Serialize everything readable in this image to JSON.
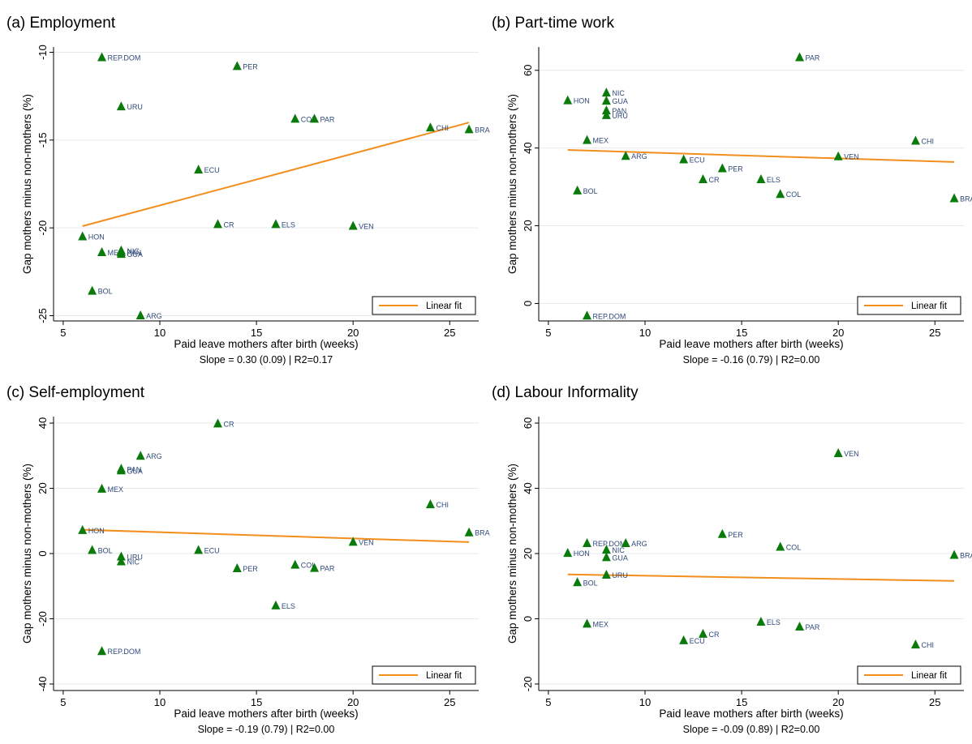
{
  "colors": {
    "marker": "#0a7a0a",
    "fit": "#f28e1c",
    "label": "#2f4a7a",
    "grid": "#e6eaee",
    "axis": "#000000"
  },
  "chart_data": [
    {
      "type": "scatter",
      "panel_title": "(a) Employment",
      "xlabel": "Paid leave mothers after birth (weeks)",
      "ylabel": "Gap mothers minus non-mothers (%)",
      "caption": "Slope = 0.30 (0.09) | R2=0.17",
      "xlim": [
        4.5,
        26.5
      ],
      "ylim": [
        -25.3,
        -9.7
      ],
      "xticks": [
        5,
        10,
        15,
        20,
        25
      ],
      "yticks": [
        -25,
        -20,
        -15,
        -10
      ],
      "grid": true,
      "legend": {
        "label": "Linear fit",
        "position": "bottom-right"
      },
      "fit": {
        "x": [
          6,
          26
        ],
        "y": [
          -19.9,
          -14.0
        ]
      },
      "points": [
        {
          "label": "REP.DOM",
          "x": 7,
          "y": -10.3
        },
        {
          "label": "PER",
          "x": 14,
          "y": -10.8
        },
        {
          "label": "URU",
          "x": 8,
          "y": -13.1
        },
        {
          "label": "COL",
          "x": 17,
          "y": -13.8
        },
        {
          "label": "PAR",
          "x": 18,
          "y": -13.8
        },
        {
          "label": "CHI",
          "x": 24,
          "y": -14.3
        },
        {
          "label": "BRA",
          "x": 26,
          "y": -14.4
        },
        {
          "label": "ECU",
          "x": 12,
          "y": -16.7
        },
        {
          "label": "CR",
          "x": 13,
          "y": -19.8
        },
        {
          "label": "ELS",
          "x": 16,
          "y": -19.8
        },
        {
          "label": "VEN",
          "x": 20,
          "y": -19.9
        },
        {
          "label": "HON",
          "x": 6,
          "y": -20.5
        },
        {
          "label": "MEX",
          "x": 7,
          "y": -21.4
        },
        {
          "label": "NIC",
          "x": 8,
          "y": -21.3
        },
        {
          "label": "PAN",
          "x": 8,
          "y": -21.4
        },
        {
          "label": "GUA",
          "x": 8,
          "y": -21.5
        },
        {
          "label": "BOL",
          "x": 6.5,
          "y": -23.6
        },
        {
          "label": "ARG",
          "x": 9,
          "y": -25.0
        }
      ]
    },
    {
      "type": "scatter",
      "panel_title": "(b) Part-time work",
      "xlabel": "Paid leave mothers after birth (weeks)",
      "ylabel": "Gap mothers minus non-mothers (%)",
      "caption": "Slope = -0.16 (0.79) | R2=0.00",
      "xlim": [
        4.5,
        26.5
      ],
      "ylim": [
        -4.5,
        66
      ],
      "xticks": [
        5,
        10,
        15,
        20,
        25
      ],
      "yticks": [
        0,
        20,
        40,
        60
      ],
      "grid": true,
      "legend": {
        "label": "Linear fit",
        "position": "bottom-right"
      },
      "fit": {
        "x": [
          6,
          26
        ],
        "y": [
          39.5,
          36.4
        ]
      },
      "points": [
        {
          "label": "PAR",
          "x": 18,
          "y": 63.3
        },
        {
          "label": "NIC",
          "x": 8,
          "y": 54.2
        },
        {
          "label": "HON",
          "x": 6,
          "y": 52.2
        },
        {
          "label": "GUA",
          "x": 8,
          "y": 52.1
        },
        {
          "label": "PAN",
          "x": 8,
          "y": 49.6
        },
        {
          "label": "URU",
          "x": 8,
          "y": 48.4
        },
        {
          "label": "MEX",
          "x": 7,
          "y": 42.0
        },
        {
          "label": "CHI",
          "x": 24,
          "y": 41.8
        },
        {
          "label": "ARG",
          "x": 9,
          "y": 37.9
        },
        {
          "label": "VEN",
          "x": 20,
          "y": 37.8
        },
        {
          "label": "ECU",
          "x": 12,
          "y": 37.0
        },
        {
          "label": "PER",
          "x": 14,
          "y": 34.7
        },
        {
          "label": "CR",
          "x": 13,
          "y": 31.9
        },
        {
          "label": "ELS",
          "x": 16,
          "y": 31.9
        },
        {
          "label": "BOL",
          "x": 6.5,
          "y": 29.0
        },
        {
          "label": "COL",
          "x": 17,
          "y": 28.1
        },
        {
          "label": "BRA",
          "x": 26,
          "y": 27.0
        },
        {
          "label": "REP.DOM",
          "x": 7,
          "y": -3.2
        }
      ]
    },
    {
      "type": "scatter",
      "panel_title": "(c) Self-employment",
      "xlabel": "Paid leave mothers after birth (weeks)",
      "ylabel": "Gap mothers minus non-mothers (%)",
      "caption": "Slope = -0.19 (0.79) | R2=0.00",
      "xlim": [
        4.5,
        26.5
      ],
      "ylim": [
        -42,
        42
      ],
      "xticks": [
        5,
        10,
        15,
        20,
        25
      ],
      "yticks": [
        -40,
        -20,
        0,
        20,
        40
      ],
      "grid": true,
      "legend": {
        "label": "Linear fit",
        "position": "bottom-right"
      },
      "fit": {
        "x": [
          6,
          26
        ],
        "y": [
          7.3,
          3.5
        ]
      },
      "points": [
        {
          "label": "CR",
          "x": 13,
          "y": 39.8
        },
        {
          "label": "ARG",
          "x": 9,
          "y": 29.9
        },
        {
          "label": "PAN",
          "x": 8,
          "y": 25.9
        },
        {
          "label": "GUA",
          "x": 8,
          "y": 25.4
        },
        {
          "label": "MEX",
          "x": 7,
          "y": 19.8
        },
        {
          "label": "CHI",
          "x": 24,
          "y": 15.0
        },
        {
          "label": "HON",
          "x": 6,
          "y": 7.1
        },
        {
          "label": "BRA",
          "x": 26,
          "y": 6.4
        },
        {
          "label": "VEN",
          "x": 20,
          "y": 3.5
        },
        {
          "label": "BOL",
          "x": 6.5,
          "y": 1.0
        },
        {
          "label": "ECU",
          "x": 12,
          "y": 1.0
        },
        {
          "label": "URU",
          "x": 8,
          "y": -1.0
        },
        {
          "label": "NIC",
          "x": 8,
          "y": -2.5
        },
        {
          "label": "COL",
          "x": 17,
          "y": -3.5
        },
        {
          "label": "PAR",
          "x": 18,
          "y": -4.5
        },
        {
          "label": "PER",
          "x": 14,
          "y": -4.6
        },
        {
          "label": "ELS",
          "x": 16,
          "y": -16.0
        },
        {
          "label": "REP.DOM",
          "x": 7,
          "y": -30.0
        }
      ]
    },
    {
      "type": "scatter",
      "panel_title": "(d) Labour Informality",
      "xlabel": "Paid leave mothers after birth (weeks)",
      "ylabel": "Gap mothers minus non-mothers (%)",
      "caption": "Slope = -0.09 (0.89) | R2=0.00",
      "xlim": [
        4.5,
        26.5
      ],
      "ylim": [
        -22,
        62
      ],
      "xticks": [
        5,
        10,
        15,
        20,
        25
      ],
      "yticks": [
        -20,
        0,
        20,
        40,
        60
      ],
      "grid": true,
      "legend": {
        "label": "Linear fit",
        "position": "bottom-right"
      },
      "fit": {
        "x": [
          6,
          26
        ],
        "y": [
          13.6,
          11.6
        ]
      },
      "points": [
        {
          "label": "VEN",
          "x": 20,
          "y": 50.7
        },
        {
          "label": "PER",
          "x": 14,
          "y": 25.9
        },
        {
          "label": "REP.DOM",
          "x": 7,
          "y": 23.1
        },
        {
          "label": "ARG",
          "x": 9,
          "y": 23.1
        },
        {
          "label": "COL",
          "x": 17,
          "y": 22.0
        },
        {
          "label": "NIC",
          "x": 8,
          "y": 21.1
        },
        {
          "label": "HON",
          "x": 6,
          "y": 20.1
        },
        {
          "label": "BRA",
          "x": 26,
          "y": 19.5
        },
        {
          "label": "GUA",
          "x": 8,
          "y": 18.8
        },
        {
          "label": "URU",
          "x": 8,
          "y": 13.4
        },
        {
          "label": "BOL",
          "x": 6.5,
          "y": 11.1
        },
        {
          "label": "ELS",
          "x": 16,
          "y": -1.0
        },
        {
          "label": "MEX",
          "x": 7,
          "y": -1.6
        },
        {
          "label": "PAR",
          "x": 18,
          "y": -2.5
        },
        {
          "label": "CR",
          "x": 13,
          "y": -4.7
        },
        {
          "label": "ECU",
          "x": 12,
          "y": -6.7
        },
        {
          "label": "CHI",
          "x": 24,
          "y": -8.0
        }
      ]
    }
  ]
}
